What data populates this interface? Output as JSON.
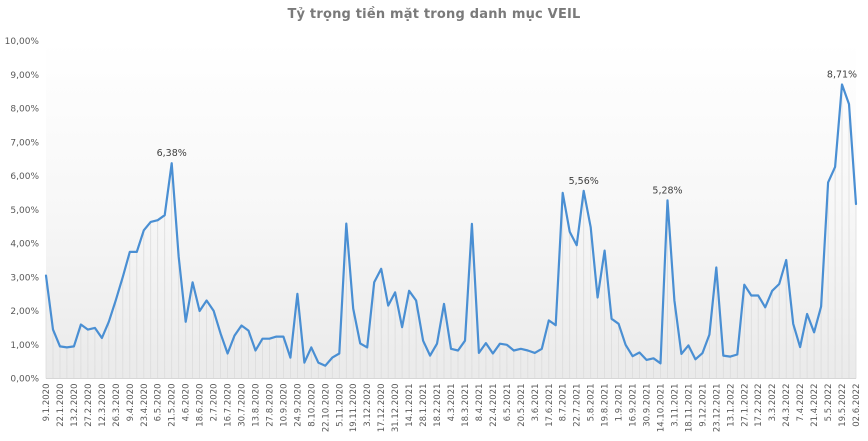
{
  "chart_data": {
    "type": "line",
    "title": "Tỷ trọng tiền mặt trong danh mục VEIL",
    "xlabel": "",
    "ylabel": "",
    "ylim": [
      0,
      10
    ],
    "y_tick_labels": [
      "0,00%",
      "1,00%",
      "2,00%",
      "3,00%",
      "4,00%",
      "5,00%",
      "6,00%",
      "7,00%",
      "8,00%",
      "9,00%",
      "10,00%"
    ],
    "legend": "none",
    "gridlines": "vertical-drop-lines",
    "x_label_point_step": 2,
    "x_labels": [
      "9.1.2020",
      "22.1.2020",
      "13.2.2020",
      "27.2.2020",
      "12.3.2020",
      "26.3.2020",
      "9.4.2020",
      "23.4.2020",
      "6.5.2020",
      "21.5.2020",
      "4.6.2020",
      "18.6.2020",
      "2.7.2020",
      "16.7.2020",
      "30.7.2020",
      "13.8.2020",
      "27.8.2020",
      "10.9.2020",
      "24.9.2020",
      "8.10.2020",
      "22.10.2020",
      "5.11.2020",
      "19.11.2020",
      "3.12.2020",
      "17.12.2020",
      "31.12.2020",
      "14.1.2021",
      "28.1.2021",
      "18.2.2021",
      "4.3.2021",
      "18.3.2021",
      "8.4.2021",
      "22.4.2021",
      "6.5.2021",
      "20.5.2021",
      "3.6.2021",
      "17.6.2021",
      "8.7.2021",
      "22.7.2021",
      "5.8.2021",
      "19.8.2021",
      "1.9.2021",
      "16.9.2021",
      "30.9.2021",
      "14.10.2021",
      "3.11.2021",
      "18.11.2021",
      "9.12.2021",
      "23.12.2021",
      "13.1.2022",
      "27.1.2022",
      "17.2.2022",
      "3.3.2022",
      "24.3.2022",
      "7.4.2022",
      "21.4.2022",
      "5.5.2022",
      "19.5.2022",
      "02.6.2022"
    ],
    "values": [
      3.05,
      1.45,
      0.95,
      0.92,
      0.95,
      1.6,
      1.45,
      1.5,
      1.2,
      1.68,
      2.32,
      3.01,
      3.75,
      3.75,
      4.39,
      4.64,
      4.69,
      4.84,
      6.38,
      3.6,
      1.68,
      2.85,
      2.0,
      2.31,
      2.01,
      1.33,
      0.74,
      1.27,
      1.57,
      1.42,
      0.83,
      1.18,
      1.18,
      1.24,
      1.24,
      0.62,
      2.51,
      0.47,
      0.92,
      0.47,
      0.38,
      0.62,
      0.74,
      4.59,
      2.07,
      1.04,
      0.92,
      2.85,
      3.25,
      2.16,
      2.55,
      1.52,
      2.6,
      2.31,
      1.12,
      0.68,
      1.03,
      2.21,
      0.88,
      0.83,
      1.12,
      4.58,
      0.76,
      1.05,
      0.74,
      1.03,
      1.0,
      0.83,
      0.88,
      0.83,
      0.76,
      0.88,
      1.72,
      1.58,
      5.5,
      4.35,
      3.95,
      5.56,
      4.48,
      2.4,
      3.79,
      1.77,
      1.62,
      1.0,
      0.66,
      0.77,
      0.55,
      0.6,
      0.45,
      5.28,
      2.31,
      0.73,
      0.98,
      0.57,
      0.75,
      1.3,
      3.29,
      0.68,
      0.65,
      0.71,
      2.78,
      2.46,
      2.46,
      2.11,
      2.6,
      2.8,
      3.51,
      1.62,
      0.93,
      1.91,
      1.37,
      2.13,
      5.81,
      6.27,
      8.71,
      8.13,
      5.17
    ],
    "annotations": [
      {
        "index": 18,
        "label": "6,38%"
      },
      {
        "index": 77,
        "label": "5,56%"
      },
      {
        "index": 89,
        "label": "5,28%"
      },
      {
        "index": 114,
        "label": "8,71%"
      }
    ],
    "colors": {
      "line": "#4a8fd3",
      "drop_line": "#dcdcdc",
      "axis": "#d6d6d6",
      "tick_text": "#595959",
      "title_text": "#7a7a7a",
      "annotation_text": "#3f3f3f",
      "plot_bg_top": "#ffffff",
      "plot_bg_mid": "#f7f7f7",
      "plot_bg_bottom": "#eaeaea"
    }
  }
}
